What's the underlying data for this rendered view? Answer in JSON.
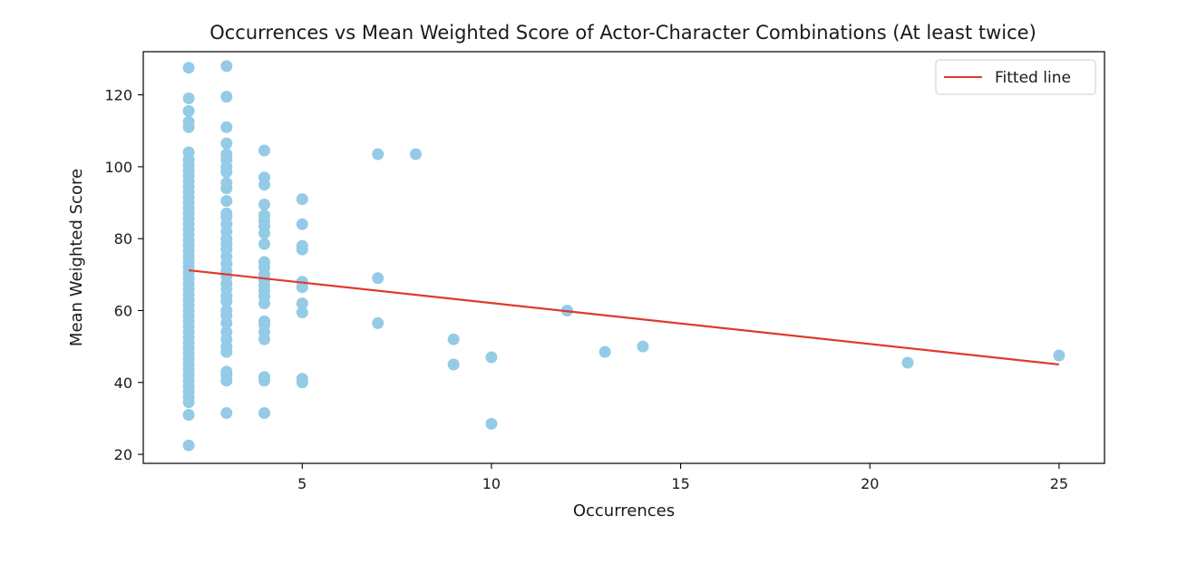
{
  "chart_data": {
    "type": "scatter",
    "title": "Occurrences vs Mean Weighted Score of Actor-Character Combinations (At least twice)",
    "xlabel": "Occurrences",
    "ylabel": "Mean Weighted Score",
    "xlim": [
      0.8,
      26.2
    ],
    "ylim": [
      17.5,
      132
    ],
    "xticks": [
      5,
      10,
      15,
      20,
      25
    ],
    "yticks": [
      20,
      40,
      60,
      80,
      100,
      120
    ],
    "grid": false,
    "legend": {
      "position": "top-right",
      "entries": [
        "Fitted line"
      ]
    },
    "colors": {
      "points": "#94cbe6",
      "fit_line": "#e03a2e",
      "axes": "#000000"
    },
    "points": [
      [
        2,
        22.5
      ],
      [
        2,
        31
      ],
      [
        2,
        34.5
      ],
      [
        2,
        36
      ],
      [
        2,
        37.5
      ],
      [
        2,
        39
      ],
      [
        2,
        40.5
      ],
      [
        2,
        42
      ],
      [
        2,
        43.5
      ],
      [
        2,
        45
      ],
      [
        2,
        46.5
      ],
      [
        2,
        48
      ],
      [
        2,
        49.5
      ],
      [
        2,
        51
      ],
      [
        2,
        52.5
      ],
      [
        2,
        54
      ],
      [
        2,
        55.5
      ],
      [
        2,
        57
      ],
      [
        2,
        58.5
      ],
      [
        2,
        60
      ],
      [
        2,
        61.5
      ],
      [
        2,
        63
      ],
      [
        2,
        64.5
      ],
      [
        2,
        66
      ],
      [
        2,
        67.5
      ],
      [
        2,
        69
      ],
      [
        2,
        70.5
      ],
      [
        2,
        72
      ],
      [
        2,
        73.5
      ],
      [
        2,
        75
      ],
      [
        2,
        76.5
      ],
      [
        2,
        78
      ],
      [
        2,
        79.5
      ],
      [
        2,
        81
      ],
      [
        2,
        82.5
      ],
      [
        2,
        84
      ],
      [
        2,
        85.5
      ],
      [
        2,
        87
      ],
      [
        2,
        88.5
      ],
      [
        2,
        90
      ],
      [
        2,
        91.5
      ],
      [
        2,
        93
      ],
      [
        2,
        94.5
      ],
      [
        2,
        96
      ],
      [
        2,
        97.5
      ],
      [
        2,
        99
      ],
      [
        2,
        100.5
      ],
      [
        2,
        102
      ],
      [
        2,
        104
      ],
      [
        2,
        111
      ],
      [
        2,
        112.5
      ],
      [
        2,
        115.5
      ],
      [
        2,
        119
      ],
      [
        2,
        127.5
      ],
      [
        3,
        31.5
      ],
      [
        3,
        40.5
      ],
      [
        3,
        42
      ],
      [
        3,
        43
      ],
      [
        3,
        48.5
      ],
      [
        3,
        50
      ],
      [
        3,
        52
      ],
      [
        3,
        54
      ],
      [
        3,
        56.5
      ],
      [
        3,
        58.5
      ],
      [
        3,
        60
      ],
      [
        3,
        62.5
      ],
      [
        3,
        64
      ],
      [
        3,
        66
      ],
      [
        3,
        67.5
      ],
      [
        3,
        69.5
      ],
      [
        3,
        71
      ],
      [
        3,
        73
      ],
      [
        3,
        75
      ],
      [
        3,
        77
      ],
      [
        3,
        78.5
      ],
      [
        3,
        80
      ],
      [
        3,
        82
      ],
      [
        3,
        84
      ],
      [
        3,
        86
      ],
      [
        3,
        87
      ],
      [
        3,
        90.5
      ],
      [
        3,
        94
      ],
      [
        3,
        95.5
      ],
      [
        3,
        98.5
      ],
      [
        3,
        100
      ],
      [
        3,
        102
      ],
      [
        3,
        103.5
      ],
      [
        3,
        106.5
      ],
      [
        3,
        111
      ],
      [
        3,
        119.5
      ],
      [
        3,
        128
      ],
      [
        4,
        31.5
      ],
      [
        4,
        40.5
      ],
      [
        4,
        41.5
      ],
      [
        4,
        52
      ],
      [
        4,
        54
      ],
      [
        4,
        56
      ],
      [
        4,
        57
      ],
      [
        4,
        62
      ],
      [
        4,
        64
      ],
      [
        4,
        65.5
      ],
      [
        4,
        67
      ],
      [
        4,
        68.5
      ],
      [
        4,
        70
      ],
      [
        4,
        72
      ],
      [
        4,
        73.5
      ],
      [
        4,
        78.5
      ],
      [
        4,
        81.5
      ],
      [
        4,
        83.5
      ],
      [
        4,
        85
      ],
      [
        4,
        86.5
      ],
      [
        4,
        89.5
      ],
      [
        4,
        95
      ],
      [
        4,
        97
      ],
      [
        4,
        104.5
      ],
      [
        5,
        40
      ],
      [
        5,
        41
      ],
      [
        5,
        59.5
      ],
      [
        5,
        62
      ],
      [
        5,
        66.5
      ],
      [
        5,
        68
      ],
      [
        5,
        77
      ],
      [
        5,
        78
      ],
      [
        5,
        84
      ],
      [
        5,
        91
      ],
      [
        7,
        56.5
      ],
      [
        7,
        69
      ],
      [
        7,
        103.5
      ],
      [
        8,
        103.5
      ],
      [
        9,
        45
      ],
      [
        9,
        52
      ],
      [
        10,
        28.5
      ],
      [
        10,
        47
      ],
      [
        12,
        60
      ],
      [
        13,
        48.5
      ],
      [
        14,
        50
      ],
      [
        21,
        45.5
      ],
      [
        25,
        47.5
      ]
    ],
    "fit_line": {
      "x": [
        2,
        25
      ],
      "y": [
        71.2,
        45
      ]
    }
  }
}
